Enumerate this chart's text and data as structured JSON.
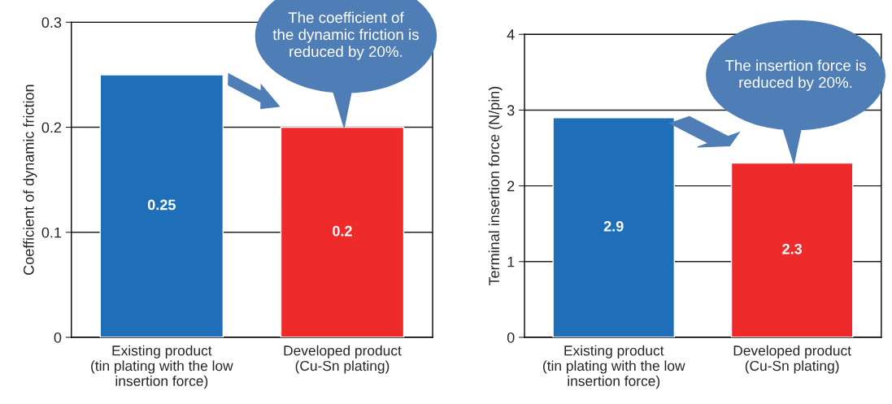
{
  "chart_data": [
    {
      "type": "bar",
      "ylabel": "Coefficient of dynamic friction",
      "categories": [
        "Existing product\n(tin plating with the low\ninsertion force)",
        "Developed product\n(Cu-Sn plating)"
      ],
      "values": [
        0.25,
        0.2
      ],
      "colors": [
        "#1e6fb8",
        "#ee2b2a"
      ],
      "ylim": [
        0,
        0.3
      ],
      "yticks": [
        0,
        0.1,
        0.2,
        0.3
      ],
      "grid": "y",
      "data_labels": true,
      "annotations": [
        "The coefficient of\nthe dynamic friction is\nreduced by 20%."
      ]
    },
    {
      "type": "bar",
      "ylabel": "Terminal insertion force (N/pin)",
      "categories": [
        "Existing product\n(tin plating with the low\ninsertion force)",
        "Developed product\n(Cu-Sn plating)"
      ],
      "values": [
        2.9,
        2.3
      ],
      "colors": [
        "#1e6fb8",
        "#ee2b2a"
      ],
      "ylim": [
        0,
        4
      ],
      "yticks": [
        0,
        1,
        2,
        3,
        4
      ],
      "grid": "y",
      "data_labels": true,
      "annotations": [
        "The insertion force is\nreduced by 20%."
      ]
    }
  ]
}
